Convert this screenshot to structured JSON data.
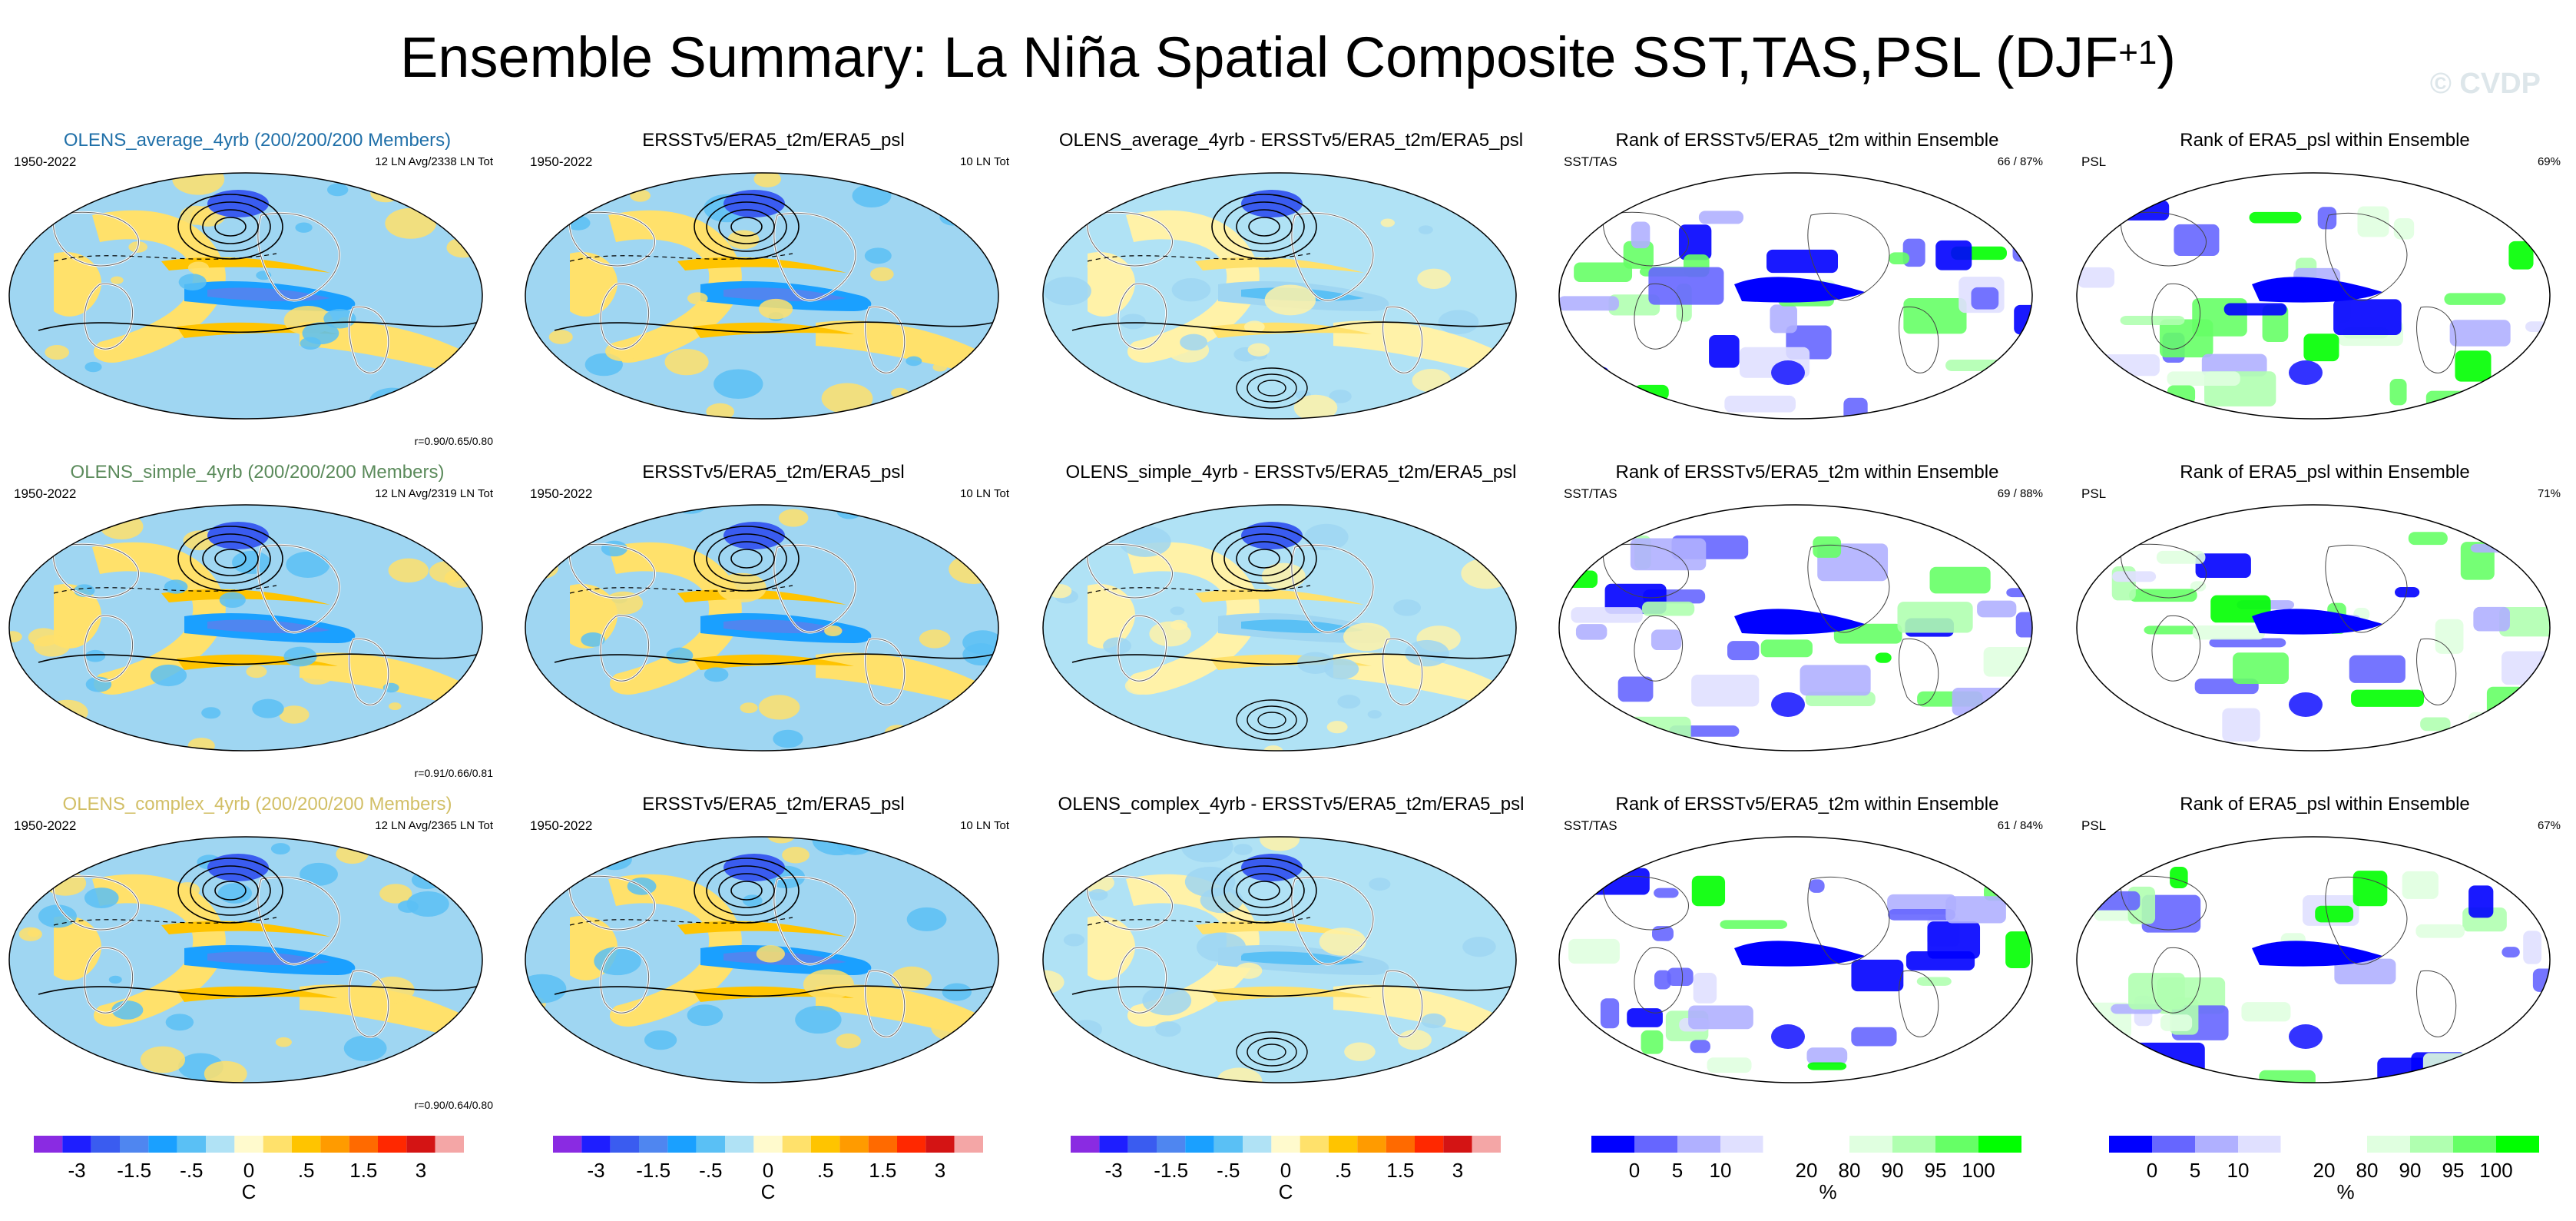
{
  "title": {
    "main": "Ensemble Summary: La Niña Spatial Composite SST,TAS,PSL (DJF",
    "sup": "+1",
    "close": ")"
  },
  "watermark": "© CVDP",
  "colors": {
    "accent_average": "#1f6fa8",
    "accent_simple": "#5a8a5a",
    "accent_complex": "#d2bf66"
  },
  "rows": [
    {
      "panels": [
        {
          "title": "OLENS_average_4yrb (200/200/200 Members)",
          "left": "1950-2022",
          "right": "12 LN Avg/2338 LN Tot",
          "corr": "r=0.90/0.65/0.80"
        },
        {
          "title": "ERSSTv5/ERA5_t2m/ERA5_psl",
          "left": "1950-2022",
          "right": "10 LN Tot"
        },
        {
          "title": "OLENS_average_4yrb - ERSSTv5/ERA5_t2m/ERA5_psl"
        },
        {
          "title": "Rank of ERSSTv5/ERA5_t2m within Ensemble",
          "left": "SST/TAS",
          "right": "66 /  87%"
        },
        {
          "title": "Rank of ERA5_psl within Ensemble",
          "left": "PSL",
          "right": "69%"
        }
      ]
    },
    {
      "panels": [
        {
          "title": "OLENS_simple_4yrb (200/200/200 Members)",
          "left": "1950-2022",
          "right": "12 LN Avg/2319 LN Tot",
          "corr": "r=0.91/0.66/0.81"
        },
        {
          "title": "ERSSTv5/ERA5_t2m/ERA5_psl",
          "left": "1950-2022",
          "right": "10 LN Tot"
        },
        {
          "title": "OLENS_simple_4yrb - ERSSTv5/ERA5_t2m/ERA5_psl"
        },
        {
          "title": "Rank of ERSSTv5/ERA5_t2m within Ensemble",
          "left": "SST/TAS",
          "right": "69 /  88%"
        },
        {
          "title": "Rank of ERA5_psl within Ensemble",
          "left": "PSL",
          "right": "71%"
        }
      ]
    },
    {
      "panels": [
        {
          "title": "OLENS_complex_4yrb (200/200/200 Members)",
          "left": "1950-2022",
          "right": "12 LN Avg/2365 LN Tot",
          "corr": "r=0.90/0.64/0.80"
        },
        {
          "title": "ERSSTv5/ERA5_t2m/ERA5_psl",
          "left": "1950-2022",
          "right": "10 LN Tot"
        },
        {
          "title": "OLENS_complex_4yrb - ERSSTv5/ERA5_t2m/ERA5_psl"
        },
        {
          "title": "Rank of ERSSTv5/ERA5_t2m within Ensemble",
          "left": "SST/TAS",
          "right": "61 /  84%"
        },
        {
          "title": "Rank of ERA5_psl within Ensemble",
          "left": "PSL",
          "right": "67%"
        }
      ]
    }
  ],
  "colorbars": {
    "anomaly": {
      "unit": "C",
      "ticks": [
        "-3",
        "-1.5",
        "-.5",
        "0",
        ".5",
        "1.5",
        "3"
      ],
      "colors": [
        "#8a2be2",
        "#1e1eff",
        "#3a5cf0",
        "#4f86f0",
        "#1aa0ff",
        "#5ac0f5",
        "#b0e2f5",
        "#fffacd",
        "#ffe16b",
        "#ffc400",
        "#ff9b00",
        "#ff6a00",
        "#ff2800",
        "#d41414",
        "#f4a6a6"
      ]
    },
    "rank": {
      "unit": "%",
      "ticks": [
        "0",
        "5",
        "10",
        "20",
        "80",
        "90",
        "95",
        "100"
      ],
      "colors": [
        "#0000ff",
        "#6666ff",
        "#b0b0ff",
        "#e0e0ff",
        "#ffffff",
        "#ffffff",
        "#e0ffe0",
        "#b0ffb0",
        "#66ff66",
        "#00ff00"
      ]
    }
  }
}
